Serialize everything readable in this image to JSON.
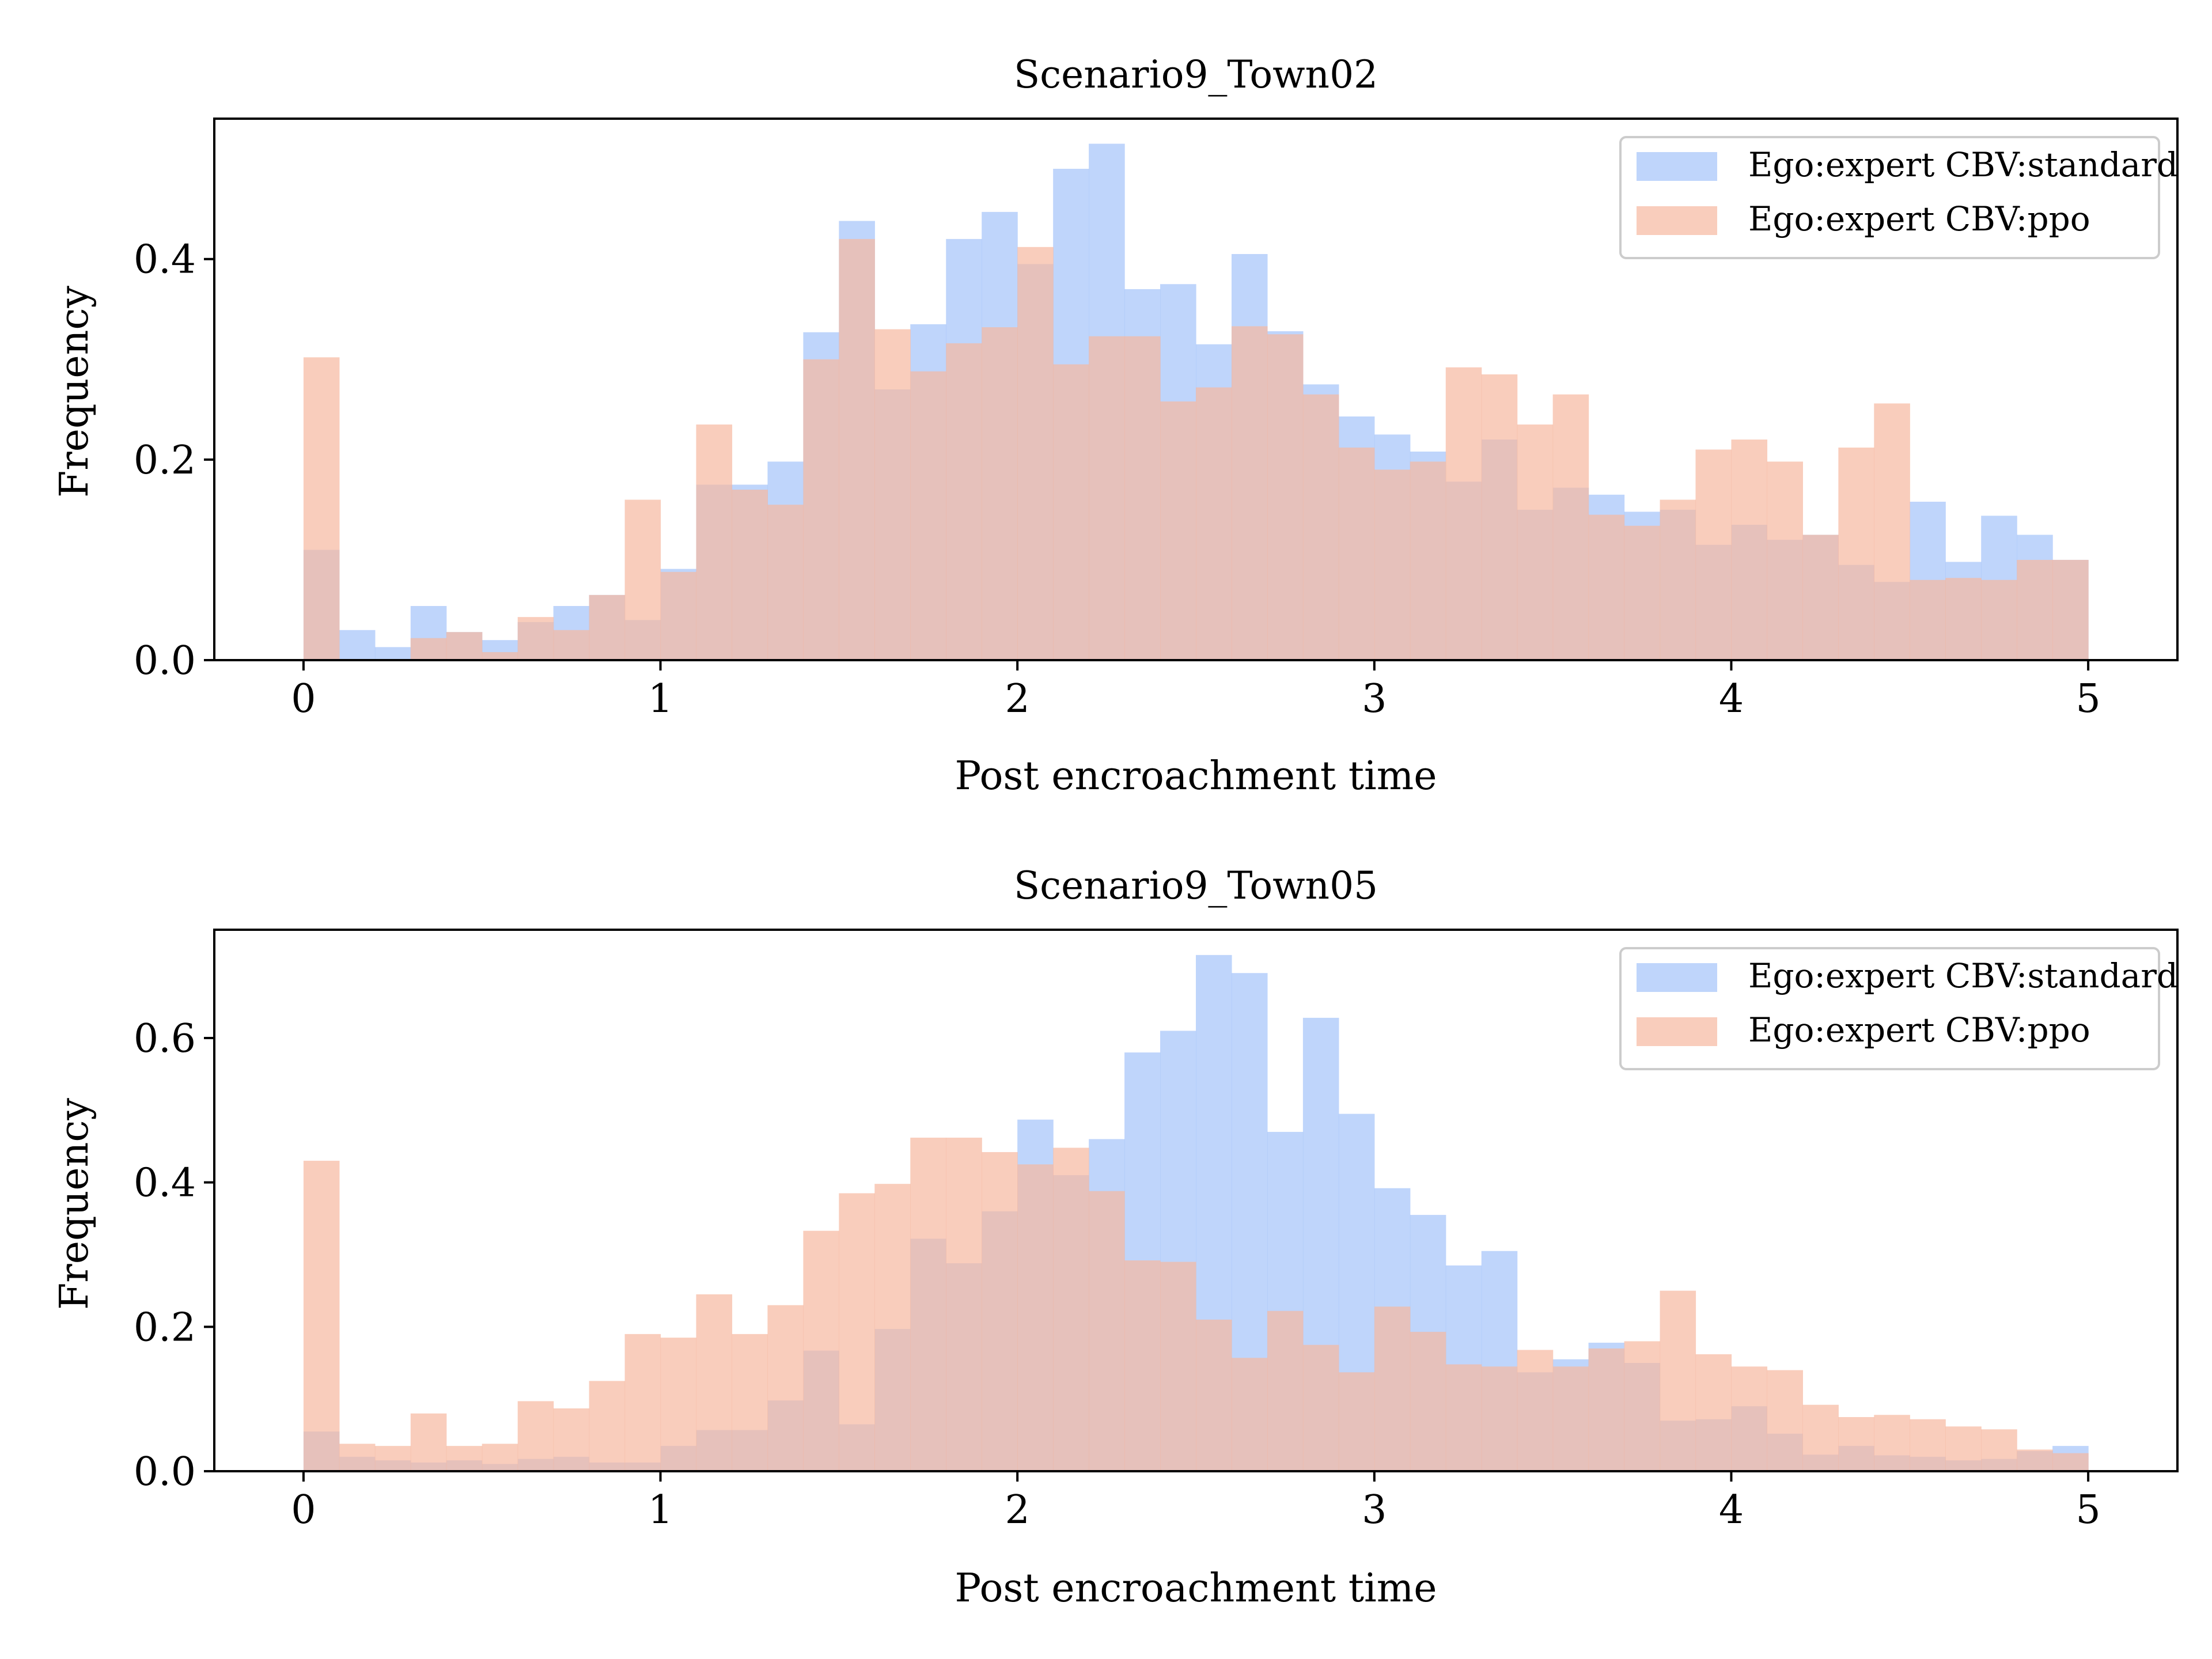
{
  "chart_data": [
    {
      "type": "histogram",
      "title": "Scenario9_Town02",
      "xlabel": "Post encroachment time",
      "ylabel": "Frequency",
      "xlim": [
        -0.25,
        5.25
      ],
      "ylim": [
        0,
        0.54
      ],
      "bins": 50,
      "bin_range": [
        0,
        5
      ],
      "x_ticks": [
        "0",
        "1",
        "2",
        "3",
        "4",
        "5"
      ],
      "y_ticks": [
        "0.0",
        "0.2",
        "0.4"
      ],
      "legend_position": "upper right",
      "grid": false,
      "series": [
        {
          "name": "Ego:expert CBV:standard",
          "color": "#a4c3f9",
          "values": [
            0.11,
            0.03,
            0.013,
            0.054,
            0.028,
            0.02,
            0.038,
            0.054,
            0.065,
            0.04,
            0.091,
            0.175,
            0.175,
            0.198,
            0.327,
            0.438,
            0.27,
            0.335,
            0.42,
            0.447,
            0.395,
            0.49,
            0.515,
            0.37,
            0.375,
            0.315,
            0.405,
            0.328,
            0.275,
            0.243,
            0.225,
            0.208,
            0.178,
            0.22,
            0.15,
            0.172,
            0.165,
            0.148,
            0.15,
            0.115,
            0.135,
            0.12,
            0.125,
            0.095,
            0.078,
            0.158,
            0.098,
            0.144,
            0.125,
            0.1
          ]
        },
        {
          "name": "Ego:expert CBV:ppo",
          "color": "#f6b8a0",
          "values": [
            0.302,
            0.0,
            0.0,
            0.022,
            0.028,
            0.008,
            0.043,
            0.03,
            0.065,
            0.16,
            0.088,
            0.235,
            0.17,
            0.155,
            0.3,
            0.42,
            0.33,
            0.288,
            0.316,
            0.332,
            0.412,
            0.295,
            0.323,
            0.323,
            0.258,
            0.272,
            0.333,
            0.325,
            0.265,
            0.212,
            0.19,
            0.198,
            0.292,
            0.285,
            0.235,
            0.265,
            0.145,
            0.134,
            0.16,
            0.21,
            0.22,
            0.198,
            0.125,
            0.212,
            0.256,
            0.08,
            0.082,
            0.08,
            0.1,
            0.1
          ]
        }
      ]
    },
    {
      "type": "histogram",
      "title": "Scenario9_Town05",
      "xlabel": "Post encroachment time",
      "ylabel": "Frequency",
      "xlim": [
        -0.25,
        5.25
      ],
      "ylim": [
        0,
        0.75
      ],
      "bins": 50,
      "bin_range": [
        0,
        5
      ],
      "x_ticks": [
        "0",
        "1",
        "2",
        "3",
        "4",
        "5"
      ],
      "y_ticks": [
        "0.0",
        "0.2",
        "0.4",
        "0.6"
      ],
      "legend_position": "upper right",
      "grid": false,
      "series": [
        {
          "name": "Ego:expert CBV:standard",
          "color": "#a4c3f9",
          "values": [
            0.055,
            0.02,
            0.015,
            0.012,
            0.015,
            0.01,
            0.017,
            0.02,
            0.012,
            0.012,
            0.035,
            0.057,
            0.057,
            0.098,
            0.167,
            0.065,
            0.197,
            0.322,
            0.288,
            0.36,
            0.487,
            0.41,
            0.46,
            0.58,
            0.61,
            0.715,
            0.69,
            0.47,
            0.628,
            0.495,
            0.392,
            0.355,
            0.285,
            0.305,
            0.137,
            0.155,
            0.178,
            0.15,
            0.07,
            0.072,
            0.09,
            0.052,
            0.023,
            0.035,
            0.022,
            0.02,
            0.015,
            0.017,
            0.028,
            0.035
          ]
        },
        {
          "name": "Ego:expert CBV:ppo",
          "color": "#f6b8a0",
          "values": [
            0.43,
            0.038,
            0.035,
            0.08,
            0.035,
            0.038,
            0.097,
            0.087,
            0.125,
            0.19,
            0.185,
            0.245,
            0.19,
            0.23,
            0.333,
            0.385,
            0.398,
            0.462,
            0.462,
            0.442,
            0.425,
            0.448,
            0.388,
            0.292,
            0.29,
            0.21,
            0.157,
            0.222,
            0.175,
            0.137,
            0.228,
            0.193,
            0.148,
            0.145,
            0.168,
            0.145,
            0.17,
            0.18,
            0.25,
            0.162,
            0.145,
            0.14,
            0.092,
            0.075,
            0.078,
            0.072,
            0.062,
            0.058,
            0.03,
            0.025
          ]
        }
      ]
    }
  ]
}
